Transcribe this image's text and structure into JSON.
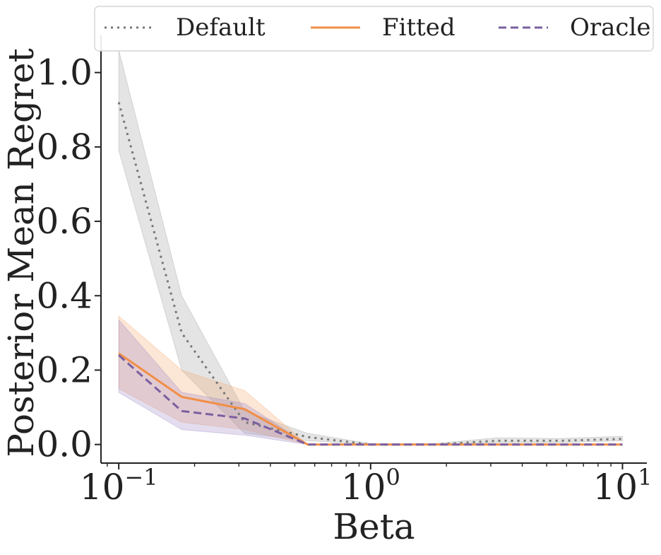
{
  "chart_data": {
    "type": "line",
    "title": "",
    "xlabel": "Beta",
    "ylabel": "Posterior Mean Regret",
    "xscale": "log",
    "xlim": [
      0.085,
      12.5
    ],
    "ylim": [
      -0.05,
      1.1
    ],
    "grid": false,
    "legend_position": "top",
    "x": [
      0.1,
      0.1778,
      0.3162,
      0.5623,
      1.0,
      1.7783,
      3.1623,
      5.6234,
      10.0
    ],
    "x_ticks": [
      {
        "value": 0.1,
        "base": "10",
        "exp": "−1"
      },
      {
        "value": 1.0,
        "base": "10",
        "exp": "0"
      },
      {
        "value": 10.0,
        "base": "10",
        "exp": "1"
      }
    ],
    "y_ticks": [
      {
        "value": 0.0,
        "label": "0.0"
      },
      {
        "value": 0.2,
        "label": "0.2"
      },
      {
        "value": 0.4,
        "label": "0.4"
      },
      {
        "value": 0.6,
        "label": "0.6"
      },
      {
        "value": 0.8,
        "label": "0.8"
      },
      {
        "value": 1.0,
        "label": "1.0"
      }
    ],
    "series": [
      {
        "name": "Default",
        "style": "dotted",
        "color": "#777777",
        "band_color": "#9e9e9e",
        "values": [
          0.92,
          0.3,
          0.06,
          0.02,
          0.0,
          0.0,
          0.01,
          0.01,
          0.015
        ],
        "lower": [
          0.79,
          0.2,
          0.03,
          0.01,
          0.0,
          0.0,
          0.005,
          0.005,
          0.01
        ],
        "upper": [
          1.06,
          0.4,
          0.09,
          0.03,
          0.002,
          0.002,
          0.018,
          0.016,
          0.022
        ]
      },
      {
        "name": "Fitted",
        "style": "solid",
        "color": "#f28e46",
        "band_color": "#f5a66a",
        "values": [
          0.245,
          0.128,
          0.095,
          0.0,
          0.0,
          0.0,
          0.0,
          0.0,
          0.0
        ],
        "lower": [
          0.15,
          0.06,
          0.04,
          0.0,
          0.0,
          0.0,
          0.0,
          0.0,
          0.0
        ],
        "upper": [
          0.345,
          0.2,
          0.145,
          0.0,
          0.0,
          0.0,
          0.0,
          0.0,
          0.0
        ]
      },
      {
        "name": "Oracle",
        "style": "dashed",
        "color": "#7a5fa0",
        "band_color": "#9b86c4",
        "values": [
          0.24,
          0.09,
          0.07,
          0.0,
          0.0,
          0.0,
          0.0,
          0.0,
          0.0
        ],
        "lower": [
          0.14,
          0.04,
          0.025,
          0.0,
          0.0,
          0.0,
          0.0,
          0.0,
          0.0
        ],
        "upper": [
          0.335,
          0.14,
          0.11,
          0.0,
          0.0,
          0.0,
          0.0,
          0.0,
          0.0
        ]
      }
    ]
  }
}
